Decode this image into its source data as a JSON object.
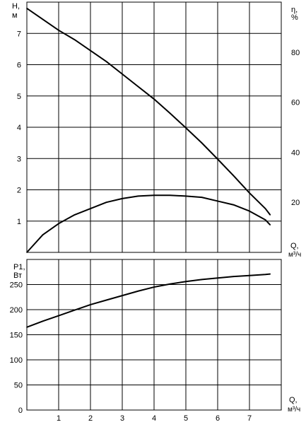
{
  "chart_data": [
    {
      "type": "line",
      "xlabel": "Q, м³/ч",
      "ylabel": "H, м",
      "y2label": "η, %",
      "xlim": [
        0,
        8
      ],
      "ylim": [
        0,
        8
      ],
      "y2lim": [
        0,
        100
      ],
      "x_tick_labels": [],
      "y_ticks": [
        1,
        2,
        3,
        4,
        5,
        6,
        7
      ],
      "y2_ticks": [
        20,
        40,
        60,
        80
      ],
      "grid": true,
      "series": [
        {
          "x": [
            0.0,
            0.5,
            1.0,
            1.5,
            2.0,
            2.5,
            3.0,
            3.5,
            4.0,
            4.5,
            5.0,
            5.5,
            6.0,
            6.5,
            7.0,
            7.5,
            7.65
          ],
          "y": [
            7.8,
            7.45,
            7.1,
            6.8,
            6.45,
            6.1,
            5.7,
            5.3,
            4.9,
            4.45,
            3.98,
            3.5,
            2.98,
            2.45,
            1.9,
            1.4,
            1.2
          ]
        },
        {
          "x": [
            0.0,
            0.5,
            1.0,
            1.5,
            2.0,
            2.5,
            3.0,
            3.5,
            4.0,
            4.5,
            5.0,
            5.5,
            6.0,
            6.5,
            7.0,
            7.5,
            7.65
          ],
          "y": [
            0,
            7,
            11.5,
            15,
            17.5,
            20,
            21.5,
            22.5,
            22.8,
            22.8,
            22.5,
            22,
            20.5,
            19,
            16.5,
            13,
            11
          ]
        }
      ]
    },
    {
      "type": "line",
      "xlabel": "Q, м³/ч",
      "ylabel": "P1, Вт",
      "xlim": [
        0,
        8
      ],
      "ylim": [
        0,
        300
      ],
      "x_ticks": [
        1,
        2,
        3,
        4,
        5,
        6,
        7
      ],
      "y_ticks": [
        0,
        50,
        100,
        150,
        200,
        250
      ],
      "grid": true,
      "series": [
        {
          "x": [
            0.0,
            0.5,
            1.0,
            1.5,
            2.0,
            2.5,
            3.0,
            3.5,
            4.0,
            4.5,
            5.0,
            5.5,
            6.0,
            6.5,
            7.0,
            7.5,
            7.65
          ],
          "y": [
            165,
            177,
            188,
            199,
            210,
            219,
            228,
            237,
            245,
            251,
            256,
            260,
            263,
            266,
            268,
            270,
            271
          ]
        }
      ]
    }
  ]
}
